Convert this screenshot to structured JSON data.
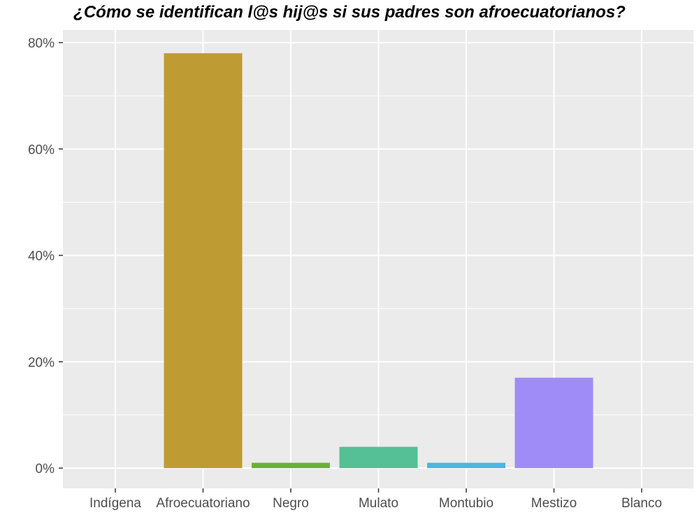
{
  "chart_data": {
    "type": "bar",
    "title": "¿Cómo se identifican l@s hij@s si sus padres son afroecuatorianos?",
    "xlabel": "",
    "ylabel": "",
    "categories": [
      "Indígena",
      "Afroecuatoriano",
      "Negro",
      "Mulato",
      "Montubio",
      "Mestizo",
      "Blanco"
    ],
    "values": [
      0,
      78,
      1,
      4,
      1,
      17,
      0
    ],
    "colors": [
      "#f8766d",
      "#bf9b33",
      "#6bb037",
      "#55bf95",
      "#4fb5e0",
      "#a08cf6",
      "#f47ac6"
    ],
    "ylim": [
      0,
      80
    ],
    "yticks": [
      0,
      20,
      40,
      60,
      80
    ],
    "ytick_labels": [
      "0%",
      "20%",
      "40%",
      "60%",
      "80%"
    ],
    "grid": true,
    "legend": "none",
    "panel_background": "#ebebeb"
  }
}
